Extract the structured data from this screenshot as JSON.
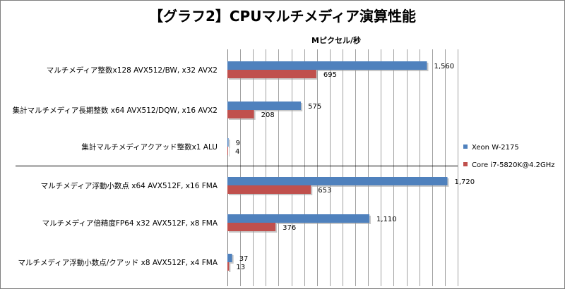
{
  "chart_data": {
    "type": "bar",
    "orientation": "horizontal",
    "title": "【グラフ2】CPUマルチメディア演算性能",
    "unit_label": "Mピクセル/秒",
    "xlim": [
      0,
      1800
    ],
    "grid": true,
    "legend_position": "right",
    "categories": [
      "マルチメディア整数x128 AVX512/BW, x32 AVX2",
      "集計マルチメディア長期整数 x64 AVX512/DQW, x16 AVX2",
      "集計マルチメディアクアッド整数x1 ALU",
      "マルチメディア浮動小数点 x64 AVX512F, x16 FMA",
      "マルチメディア倍精度FP64 x32 AVX512F, x8 FMA",
      "マルチメディア浮動小数点/クアッド x8 AVX512F, x4 FMA"
    ],
    "series": [
      {
        "name": "Xeon W-2175",
        "color": "#4f81bd",
        "values": [
          1560,
          575,
          9,
          1720,
          1110,
          37
        ],
        "labels": [
          "1,560",
          "575",
          "9",
          "1,720",
          "1,110",
          "37"
        ]
      },
      {
        "name": "Core i7-5820K@4.2GHz",
        "color": "#c0504d",
        "values": [
          695,
          208,
          4,
          653,
          376,
          13
        ],
        "labels": [
          "695",
          "208",
          "4",
          "653",
          "376",
          "13"
        ]
      }
    ]
  }
}
